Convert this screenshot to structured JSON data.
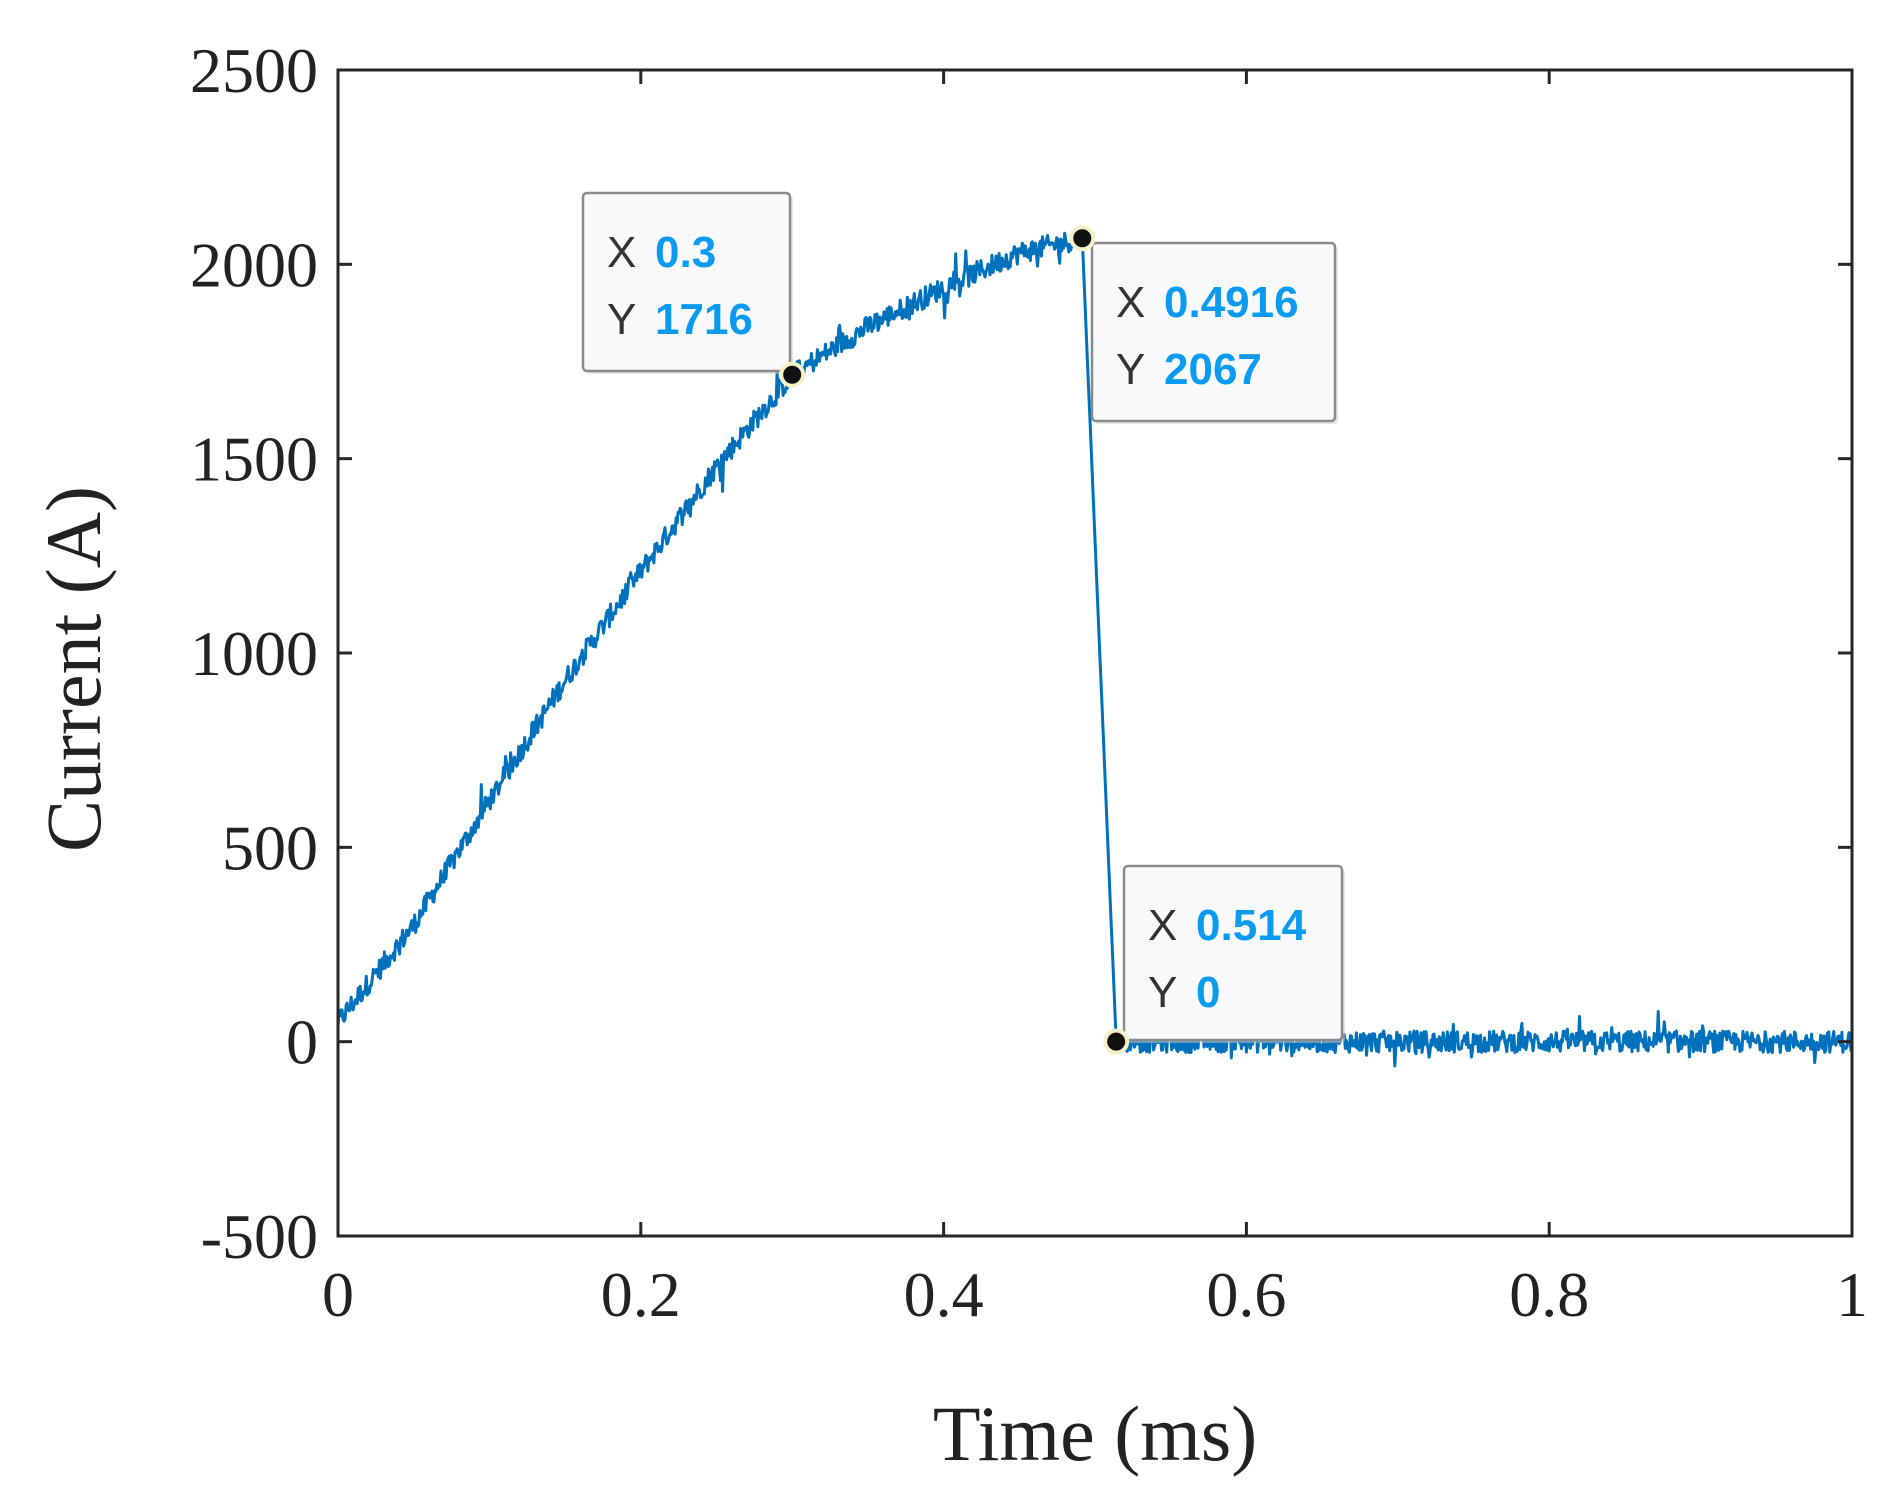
{
  "chart_data": {
    "type": "line",
    "title": "",
    "xlabel": "Time (ms)",
    "ylabel": "Current (A)",
    "xlim": [
      0,
      1
    ],
    "ylim": [
      -500,
      2500
    ],
    "xticks": [
      0,
      0.2,
      0.4,
      0.6,
      0.8,
      1
    ],
    "xtick_labels": [
      "0",
      "0.2",
      "0.4",
      "0.6",
      "0.8",
      "1"
    ],
    "yticks": [
      -500,
      0,
      500,
      1000,
      1500,
      2000,
      2500
    ],
    "ytick_labels": [
      "-500",
      "0",
      "500",
      "1000",
      "1500",
      "2000",
      "2500"
    ],
    "grid": false,
    "line_color": "#0072BD",
    "series": [
      {
        "name": "Current",
        "x": [
          0,
          0.05,
          0.1,
          0.15,
          0.2,
          0.25,
          0.3,
          0.35,
          0.4,
          0.45,
          0.4916,
          0.514,
          0.6,
          0.7,
          0.8,
          0.9,
          1.0
        ],
        "values": [
          50,
          300,
          620,
          930,
          1210,
          1480,
          1716,
          1840,
          1940,
          2030,
          2067,
          0,
          0,
          0,
          0,
          0,
          0
        ],
        "noise_amplitude": 40
      }
    ],
    "datatips": [
      {
        "x_key": "X",
        "x_value": "0.3",
        "y_key": "Y",
        "y_value": "1716",
        "x": 0.3,
        "y": 1716
      },
      {
        "x_key": "X",
        "x_value": "0.4916",
        "y_key": "Y",
        "y_value": "2067",
        "x": 0.4916,
        "y": 2067
      },
      {
        "x_key": "X",
        "x_value": "0.514",
        "y_key": "Y",
        "y_value": "0",
        "x": 0.514,
        "y": 0
      }
    ],
    "datatip_value_color": "#0A9BF0"
  }
}
